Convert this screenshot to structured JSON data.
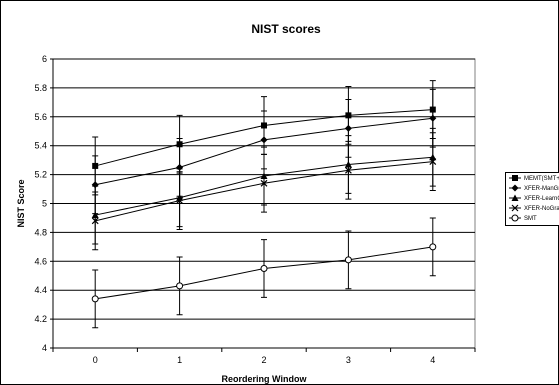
{
  "chart_data": {
    "type": "line",
    "title": "NIST scores",
    "xlabel": "Reordering Window",
    "ylabel": "NIST Score",
    "x": [
      0,
      1,
      2,
      3,
      4
    ],
    "ylim": [
      4,
      6
    ],
    "yticks": [
      "4",
      "4.2",
      "4.4",
      "4.6",
      "4.8",
      "5",
      "5.2",
      "5.4",
      "5.6",
      "5.8",
      "6"
    ],
    "grid": true,
    "legend_position": "right",
    "series": [
      {
        "name": "MEMT(SMT+XFER)",
        "marker": "square",
        "values": [
          5.26,
          5.41,
          5.54,
          5.61,
          5.65
        ],
        "error": [
          0.2,
          0.2,
          0.2,
          0.2,
          0.2
        ]
      },
      {
        "name": "XFER-ManGram",
        "marker": "diamond",
        "values": [
          5.13,
          5.25,
          5.44,
          5.52,
          5.59
        ],
        "error": [
          0.2,
          0.2,
          0.2,
          0.2,
          0.2
        ]
      },
      {
        "name": "XFER-LearnGram",
        "marker": "triangle",
        "values": [
          4.92,
          5.04,
          5.19,
          5.27,
          5.32
        ],
        "error": [
          0.2,
          0.2,
          0.2,
          0.2,
          0.2
        ]
      },
      {
        "name": "XFER-NoGram",
        "marker": "x",
        "values": [
          4.88,
          5.02,
          5.14,
          5.23,
          5.29
        ],
        "error": [
          0.2,
          0.2,
          0.2,
          0.2,
          0.2
        ]
      },
      {
        "name": "SMT",
        "marker": "circle",
        "values": [
          4.34,
          4.43,
          4.55,
          4.61,
          4.7
        ],
        "error": [
          0.2,
          0.2,
          0.2,
          0.2,
          0.2
        ]
      }
    ]
  }
}
